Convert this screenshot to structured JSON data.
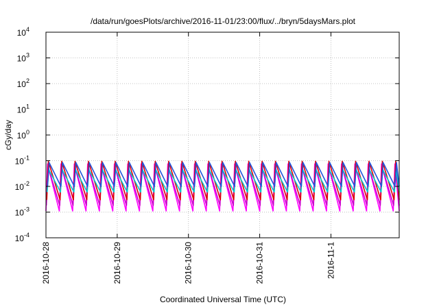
{
  "chart_data": {
    "type": "line",
    "title": "/data/run/goesPlots/archive/2016-11-01/23:00/flux/../bryn/5daysMars.plot",
    "xlabel": "Coordinated Universal Time (UTC)",
    "ylabel": "cGy/day",
    "y_scale": "log",
    "ylim": [
      0.0001,
      10000
    ],
    "y_ticks": [
      {
        "base": "10",
        "exp": "-4"
      },
      {
        "base": "10",
        "exp": "-3"
      },
      {
        "base": "10",
        "exp": "-2"
      },
      {
        "base": "10",
        "exp": "-1"
      },
      {
        "base": "10",
        "exp": "0"
      },
      {
        "base": "10",
        "exp": "1"
      },
      {
        "base": "10",
        "exp": "2"
      },
      {
        "base": "10",
        "exp": "3"
      },
      {
        "base": "10",
        "exp": "4"
      }
    ],
    "x_range": [
      "2016-10-28T00:00",
      "2016-11-01T23:00"
    ],
    "x_ticks": [
      "2016-10-28",
      "2016-10-29",
      "2016-10-30",
      "2016-10-31",
      "2016-11-1"
    ],
    "grid": true,
    "sawtooth_period_hours": 4.5,
    "series": [
      {
        "color": "#ff00ff",
        "peak": 0.075,
        "trough": 0.0011
      },
      {
        "color": "#cc00cc",
        "peak": 0.06,
        "trough": 0.0018
      },
      {
        "color": "#dd0000",
        "peak": 0.095,
        "trough": 0.003
      },
      {
        "color": "#00cccc",
        "peak": 0.045,
        "trough": 0.006
      },
      {
        "color": "#2255dd",
        "peak": 0.085,
        "trough": 0.01
      }
    ]
  }
}
